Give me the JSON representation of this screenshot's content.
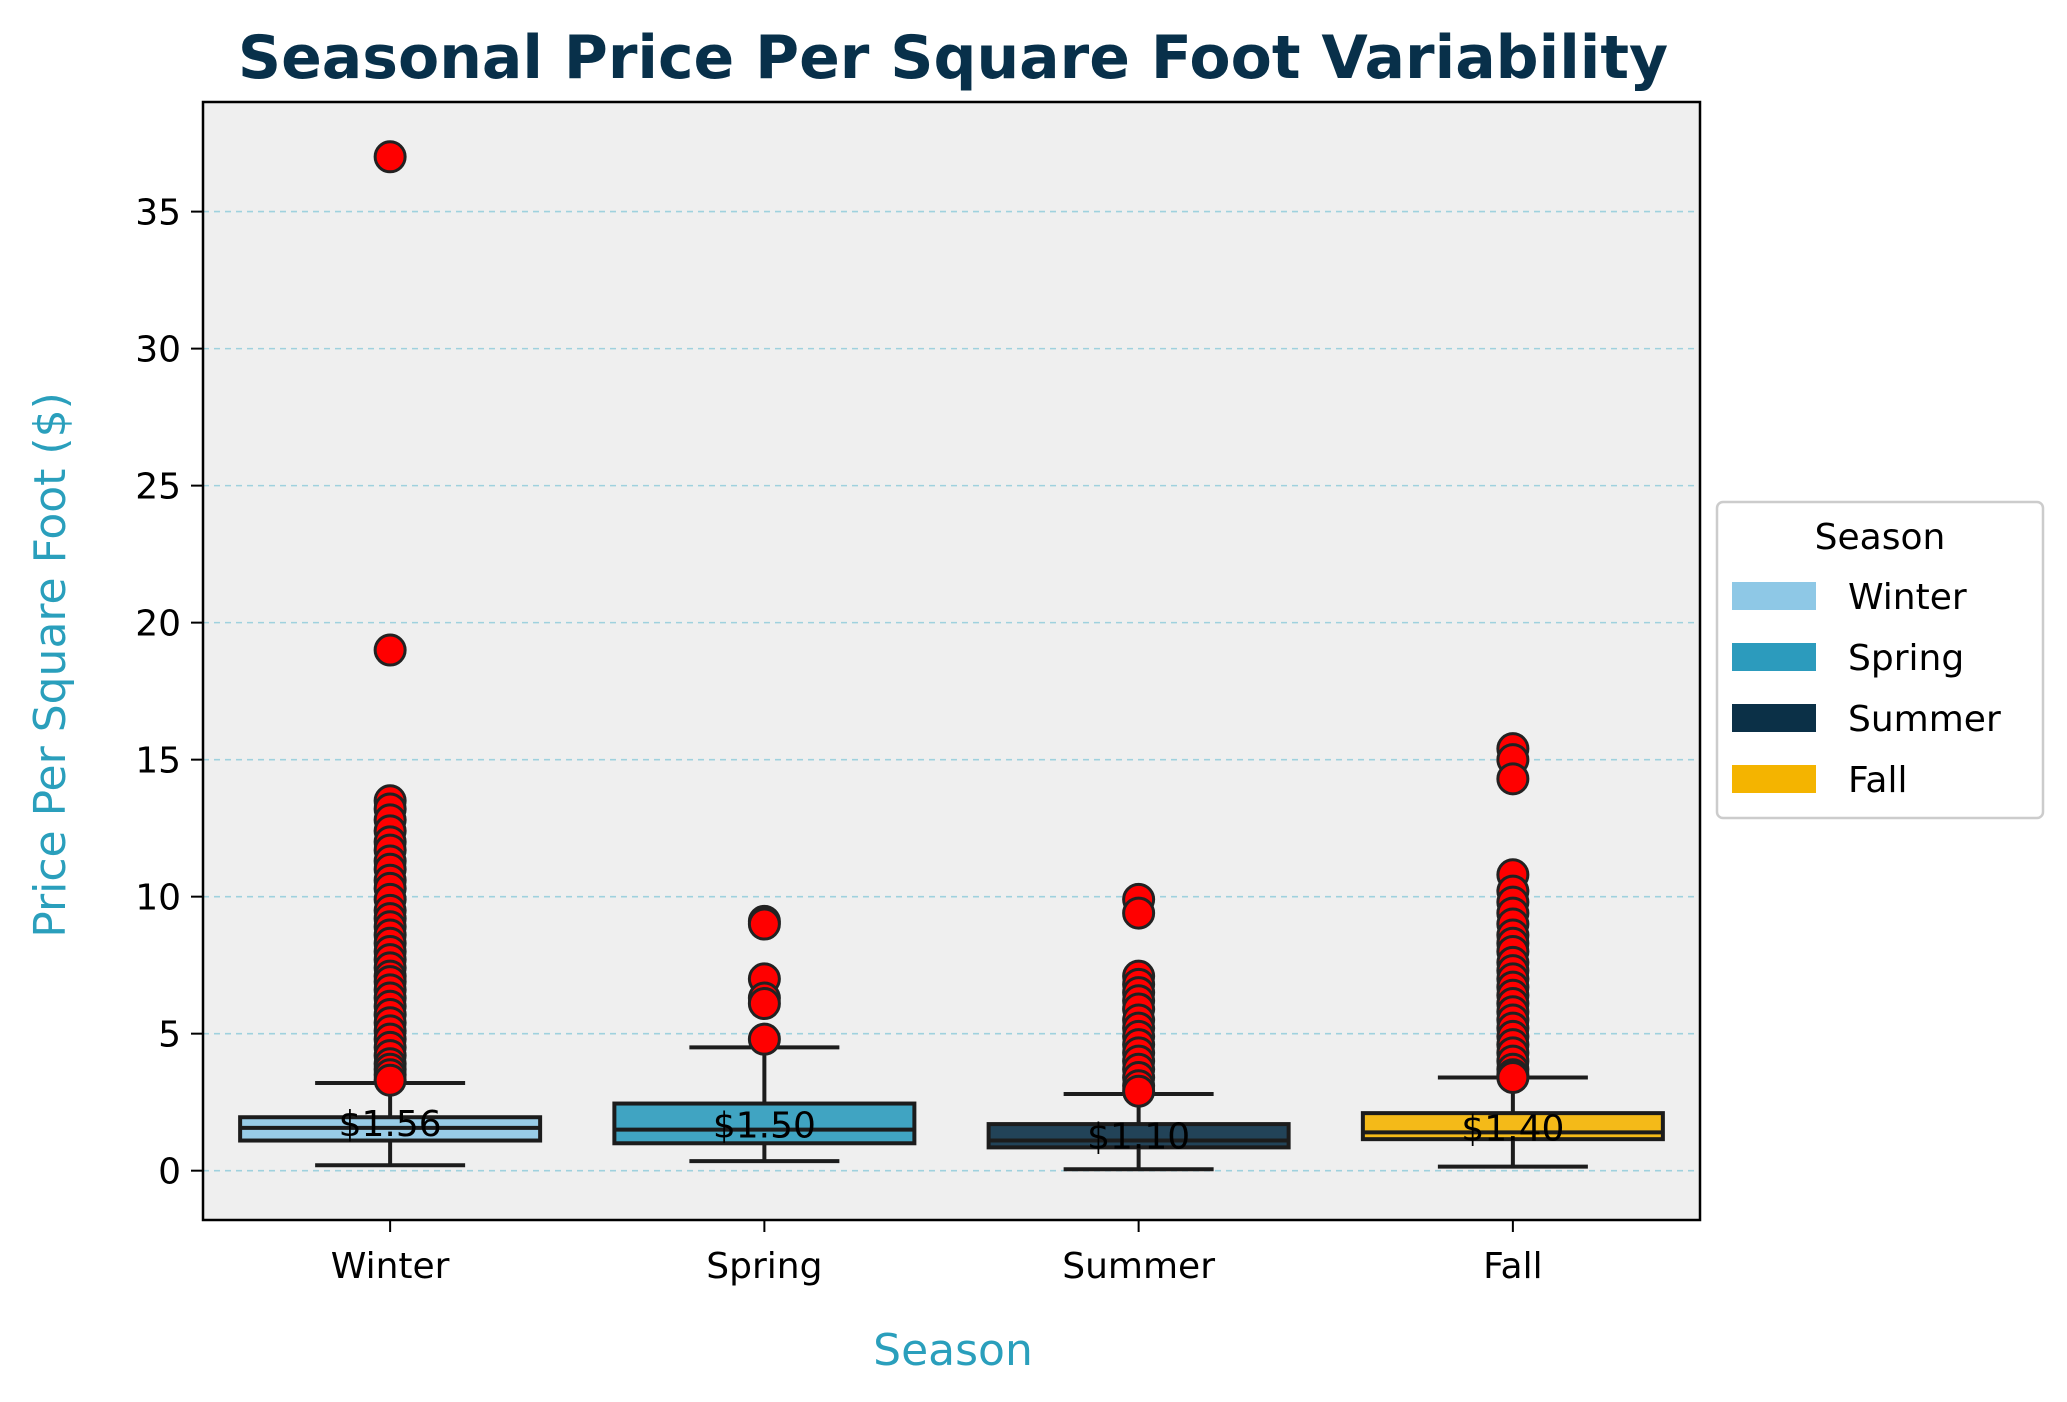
{
  "chart_data": {
    "type": "box",
    "title": "Seasonal Price Per Square Foot Variability",
    "xlabel": "Season",
    "ylabel": "Price Per Square Foot ($)",
    "ylim": [
      -1.8,
      39
    ],
    "yticks": [
      0,
      5,
      10,
      15,
      20,
      25,
      30,
      35
    ],
    "grid": "horizontal dashed",
    "legend": {
      "title": "Season",
      "placement": "center-right outside",
      "entries": [
        "Winter",
        "Spring",
        "Summer",
        "Fall"
      ]
    },
    "categories": [
      "Winter",
      "Spring",
      "Summer",
      "Fall"
    ],
    "boxes": [
      {
        "name": "Winter",
        "color": "#8ec8e6",
        "whisker_low": 0.2,
        "q1": 1.1,
        "median": 1.56,
        "q3": 1.95,
        "whisker_high": 3.2,
        "median_label": "$1.56",
        "outliers": [
          37.0,
          19.0,
          13.5,
          13.2,
          12.8,
          12.4,
          12.0,
          11.7,
          11.3,
          11.0,
          10.6,
          10.3,
          9.9,
          9.5,
          9.2,
          8.9,
          8.6,
          8.3,
          8.0,
          7.7,
          7.4,
          7.1,
          6.9,
          6.6,
          6.3,
          6.0,
          5.7,
          5.4,
          5.1,
          4.8,
          4.5,
          4.2,
          3.9,
          3.7,
          3.5,
          3.3
        ]
      },
      {
        "name": "Spring",
        "color": "#2c9bbd",
        "whisker_low": 0.35,
        "q1": 1.0,
        "median": 1.5,
        "q3": 2.45,
        "whisker_high": 4.5,
        "median_label": "$1.50",
        "outliers": [
          9.1,
          9.0,
          7.0,
          6.3,
          6.1,
          4.8
        ]
      },
      {
        "name": "Summer",
        "color": "#0b3047",
        "whisker_low": 0.05,
        "q1": 0.85,
        "median": 1.1,
        "q3": 1.7,
        "whisker_high": 2.8,
        "median_label": "$1.10",
        "outliers": [
          9.9,
          9.4,
          7.1,
          6.8,
          6.5,
          6.2,
          5.9,
          5.5,
          5.2,
          4.9,
          4.6,
          4.3,
          4.0,
          3.7,
          3.4,
          3.1,
          2.9
        ]
      },
      {
        "name": "Fall",
        "color": "#f4b400",
        "whisker_low": 0.15,
        "q1": 1.15,
        "median": 1.4,
        "q3": 2.1,
        "whisker_high": 3.4,
        "median_label": "$1.40",
        "outliers": [
          15.4,
          15.0,
          14.3,
          10.8,
          10.2,
          9.8,
          9.4,
          9.0,
          8.6,
          8.3,
          8.0,
          7.6,
          7.3,
          7.0,
          6.7,
          6.4,
          6.1,
          5.8,
          5.5,
          5.2,
          4.9,
          4.6,
          4.3,
          4.0,
          3.7,
          3.5,
          3.4
        ]
      }
    ]
  }
}
